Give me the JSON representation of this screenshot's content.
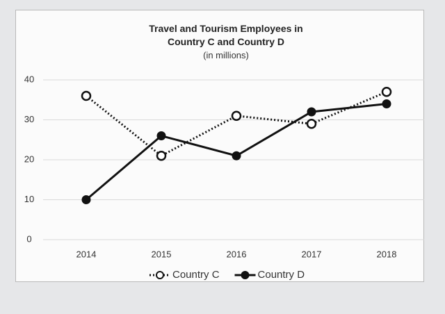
{
  "chart_data": {
    "type": "line",
    "title": "Travel and Tourism Employees in Country C and Country D",
    "subtitle": "(in millions)",
    "categories": [
      "2014",
      "2015",
      "2016",
      "2017",
      "2018"
    ],
    "series": [
      {
        "name": "Country C",
        "color": "#111111",
        "dash": "dotted",
        "marker": "open",
        "values": [
          36,
          21,
          31,
          29,
          37
        ]
      },
      {
        "name": "Country D",
        "color": "#111111",
        "dash": "solid",
        "marker": "filled",
        "values": [
          10,
          26,
          21,
          32,
          34
        ]
      }
    ],
    "ylim": [
      0,
      40
    ],
    "yticks": [
      0,
      10,
      20,
      30,
      40
    ],
    "grid": true,
    "legend": "bottom"
  }
}
